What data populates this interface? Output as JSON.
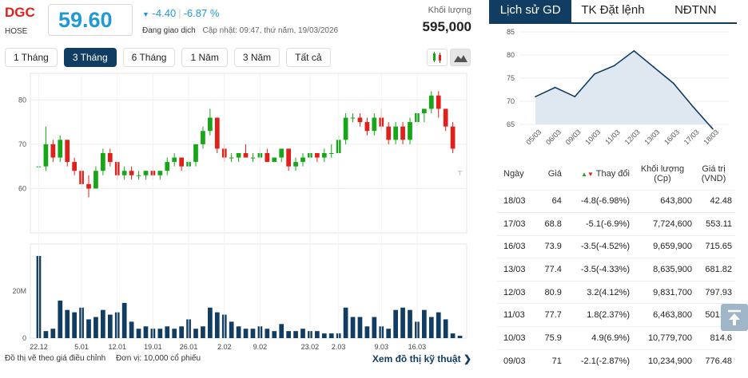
{
  "header": {
    "ticker": "DGC",
    "exchange": "HOSE",
    "price": "59.60",
    "change": "-4.40",
    "change_pct": "-6.87 %",
    "status": "Đang giao dịch",
    "updated": "Cập nhật: 09:47, thứ năm, 19/03/2026",
    "volume_label": "Khối lượng",
    "volume": "595,000"
  },
  "ranges": [
    "1 Tháng",
    "3 Tháng",
    "6 Tháng",
    "1 Năm",
    "3 Năm",
    "Tất cả"
  ],
  "active_range": "3 Tháng",
  "chart_icons": [
    "candlestick-icon",
    "mountain-chart-icon"
  ],
  "footer": {
    "note": "Đồ thị vẽ theo giá điều chỉnh",
    "unit": "Đơn vị: 10,000 cổ phiếu",
    "link": "Xem đồ thị kỹ thuật"
  },
  "tabs": [
    "Lịch sử GD",
    "TK Đặt lệnh",
    "NĐTNN"
  ],
  "colors": {
    "accent": "#123d63",
    "up": "#17a617",
    "down": "#e0201b",
    "ceiling": "#b22dd6",
    "floor": "#1f9ad6",
    "price": "#1f9ad6"
  },
  "chart_data": [
    {
      "type": "candlestick",
      "y_ticks": [
        "80",
        "70",
        "60"
      ],
      "ylim": [
        50,
        86
      ],
      "x_ticks": [
        "22.12",
        "5.01",
        "12.01",
        "19.01",
        "26.01",
        "2.02",
        "9.02",
        "23.02",
        "2.03",
        "9.03",
        "16.03"
      ],
      "volume_ticks": [
        "20M",
        "0"
      ],
      "volume_max": 36,
      "candles": [
        [
          65,
          66,
          64,
          65
        ],
        [
          65,
          74,
          64,
          70
        ],
        [
          70,
          71,
          66,
          67
        ],
        [
          67,
          72,
          66,
          71
        ],
        [
          71,
          71,
          65,
          66
        ],
        [
          66,
          67,
          63,
          64
        ],
        [
          64,
          65,
          60,
          61
        ],
        [
          61,
          63,
          58,
          60
        ],
        [
          60,
          65,
          60,
          64
        ],
        [
          64,
          69,
          63,
          68
        ],
        [
          68,
          69,
          65,
          66
        ],
        [
          66,
          66,
          62,
          63
        ],
        [
          63,
          65,
          62,
          64
        ],
        [
          64,
          65,
          62,
          63
        ],
        [
          63,
          64,
          62,
          63
        ],
        [
          63,
          64,
          62,
          64
        ],
        [
          64,
          65,
          62,
          63
        ],
        [
          63,
          64,
          62,
          64
        ],
        [
          64,
          67,
          63,
          66
        ],
        [
          66,
          68,
          65,
          67
        ],
        [
          67,
          67,
          64,
          65
        ],
        [
          65,
          67,
          64,
          66
        ],
        [
          66,
          70,
          65,
          70
        ],
        [
          70,
          74,
          69,
          73
        ],
        [
          73,
          78,
          72,
          76
        ],
        [
          76,
          76,
          68,
          69
        ],
        [
          69,
          70,
          66,
          67
        ],
        [
          67,
          68,
          66,
          67
        ],
        [
          67,
          68,
          66,
          68
        ],
        [
          68,
          70,
          67,
          67
        ],
        [
          67,
          68,
          66,
          67
        ],
        [
          67,
          69,
          66,
          68
        ],
        [
          68,
          69,
          66,
          66
        ],
        [
          66,
          67,
          66,
          67
        ],
        [
          67,
          69,
          66,
          69
        ],
        [
          69,
          69,
          64,
          65
        ],
        [
          65,
          67,
          64,
          66
        ],
        [
          66,
          68,
          65,
          67
        ],
        [
          67,
          68,
          66,
          68
        ],
        [
          68,
          68,
          66,
          67
        ],
        [
          67,
          69,
          66,
          68
        ],
        [
          68,
          70,
          67,
          68
        ],
        [
          68,
          72,
          68,
          71
        ],
        [
          71,
          77,
          70,
          76
        ],
        [
          76,
          77,
          75,
          76
        ],
        [
          76,
          77,
          74,
          75
        ],
        [
          75,
          76,
          72,
          73
        ],
        [
          73,
          77,
          72,
          76
        ],
        [
          76,
          78,
          73,
          74
        ],
        [
          74,
          75,
          70,
          71
        ],
        [
          71,
          75,
          70,
          74
        ],
        [
          74,
          75,
          70,
          71
        ],
        [
          71,
          76,
          70,
          75
        ],
        [
          75,
          77,
          74,
          77
        ],
        [
          77,
          78,
          75,
          78
        ],
        [
          78,
          82,
          77,
          81
        ],
        [
          81,
          82,
          76,
          78
        ],
        [
          78,
          78,
          73,
          74
        ],
        [
          74,
          75,
          68,
          69
        ],
        [
          64,
          64,
          63,
          64
        ]
      ],
      "volumes": [
        35,
        3,
        4,
        16,
        12,
        11,
        13,
        8,
        9,
        12,
        10,
        11,
        15,
        7,
        4,
        5,
        4,
        4,
        5,
        4,
        5,
        8,
        4,
        5,
        13,
        11,
        10,
        7,
        5,
        4,
        4,
        5,
        4,
        3,
        6,
        3,
        3,
        4,
        3,
        3,
        2,
        2,
        2,
        13,
        9,
        9,
        5,
        9,
        5,
        4,
        12,
        13,
        12,
        7,
        12,
        9,
        11,
        8,
        2,
        1
      ]
    },
    {
      "type": "line",
      "y_ticks": [
        "85",
        "80",
        "75",
        "70",
        "65"
      ],
      "ylim": [
        65,
        85
      ],
      "x": [
        "05/03",
        "06/03",
        "09/03",
        "10/03",
        "11/03",
        "12/03",
        "13/03",
        "16/03",
        "17/03",
        "18/03"
      ],
      "values": [
        71,
        73,
        71,
        75.9,
        77.7,
        80.9,
        77.4,
        73.9,
        68.8,
        64
      ]
    }
  ],
  "history": {
    "headers": [
      "Ngày",
      "Giá",
      "Thay đổi",
      "Khối lượng (Cp)",
      "Giá trị (VND)"
    ],
    "rows": [
      {
        "date": "18/03",
        "price": "64",
        "change": "-4.8(-6.98%)",
        "cls": "floor",
        "volume": "643,800",
        "value": "42.48"
      },
      {
        "date": "17/03",
        "price": "68.8",
        "change": "-5.1(-6.9%)",
        "cls": "floor",
        "volume": "7,724,600",
        "value": "553.11"
      },
      {
        "date": "16/03",
        "price": "73.9",
        "change": "-3.5(-4.52%)",
        "cls": "dn",
        "volume": "9,659,900",
        "value": "715.65"
      },
      {
        "date": "13/03",
        "price": "77.4",
        "change": "-3.5(-4.33%)",
        "cls": "dn",
        "volume": "8,635,900",
        "value": "681.82"
      },
      {
        "date": "12/03",
        "price": "80.9",
        "change": "3.2(4.12%)",
        "cls": "up",
        "volume": "9,831,700",
        "value": "797.93"
      },
      {
        "date": "11/03",
        "price": "77.7",
        "change": "1.8(2.37%)",
        "cls": "up",
        "volume": "6,463,800",
        "value": "501.99"
      },
      {
        "date": "10/03",
        "price": "75.9",
        "change": "4.9(6.9%)",
        "cls": "ceil",
        "volume": "10,779,700",
        "value": "814.6"
      },
      {
        "date": "09/03",
        "price": "71",
        "change": "-2.1(-2.87%)",
        "cls": "dn",
        "volume": "10,234,900",
        "value": "776.48"
      }
    ]
  }
}
